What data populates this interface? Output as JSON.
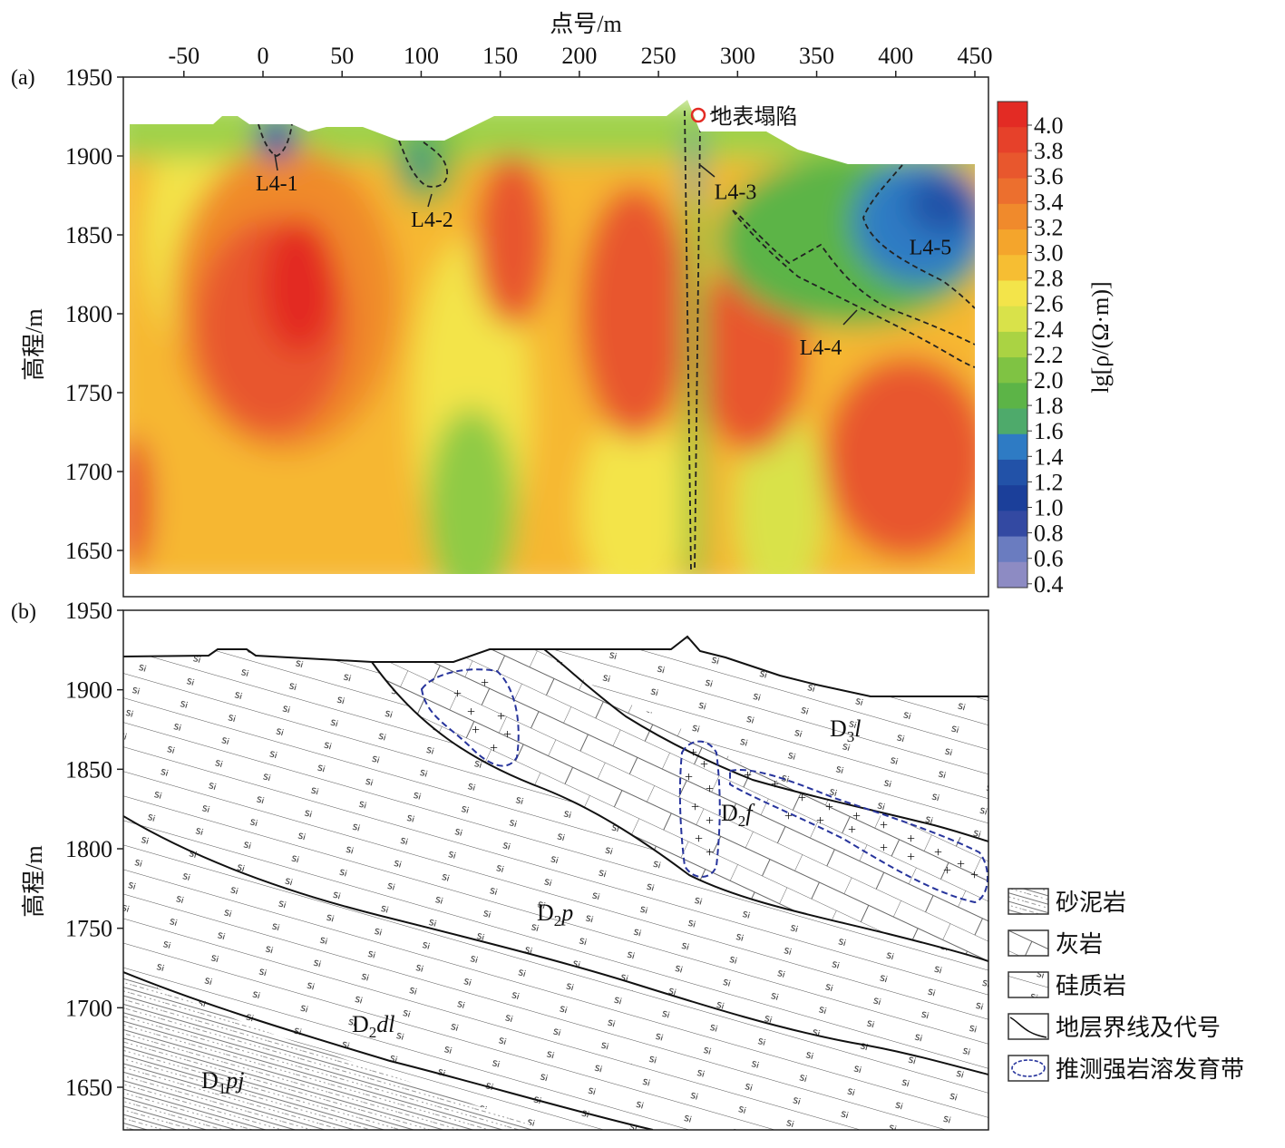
{
  "chart_data": [
    {
      "type": "heatmap",
      "panel_label": "(a)",
      "xlabel": "点号/m",
      "ylabel": "高程/m",
      "xticks": [
        -50,
        0,
        50,
        100,
        150,
        200,
        250,
        300,
        350,
        400,
        450
      ],
      "yticks": [
        1950,
        1900,
        1850,
        1800,
        1750,
        1700,
        1650
      ],
      "xlim": [
        -85,
        455
      ],
      "ylim": [
        1630,
        1950
      ],
      "colorbar": {
        "label": "lg[ρ/(Ω·m)]",
        "ticks": [
          "4.0",
          "3.8",
          "3.6",
          "3.4",
          "3.2",
          "3.0",
          "2.8",
          "2.6",
          "2.4",
          "2.2",
          "2.0",
          "1.8",
          "1.6",
          "1.4",
          "1.2",
          "1.0",
          "0.8",
          "0.6",
          "0.4"
        ],
        "colors": [
          "#e32b24",
          "#e6412a",
          "#e8572d",
          "#ec6f2e",
          "#f08a2c",
          "#f4a52c",
          "#f6be33",
          "#f3e44a",
          "#d9e24a",
          "#aad343",
          "#7fc343",
          "#5cb447",
          "#4eaa6b",
          "#2e7bc4",
          "#2252a8",
          "#1b3f9a",
          "#3349a2",
          "#6a7cc0",
          "#8d8bc3"
        ]
      },
      "anomalies": [
        {
          "label": "L4-1",
          "x": 8,
          "y": 1907
        },
        {
          "label": "L4-2",
          "x": 105,
          "y": 1885
        },
        {
          "label": "L4-3",
          "x": 275,
          "y": 1890
        },
        {
          "label": "L4-4",
          "x": 365,
          "y": 1800
        },
        {
          "label": "L4-5",
          "x": 420,
          "y": 1855
        }
      ],
      "annotation": {
        "label": "地表塌陷",
        "x": 276,
        "y": 1925
      }
    },
    {
      "type": "geologic_section",
      "panel_label": "(b)",
      "ylabel": "高程/m",
      "yticks": [
        1950,
        1900,
        1850,
        1800,
        1750,
        1700,
        1650
      ],
      "ylim": [
        1630,
        1950
      ],
      "strata": [
        {
          "code": "D",
          "sub": "3",
          "suffix": "l"
        },
        {
          "code": "D",
          "sub": "2",
          "suffix": "f"
        },
        {
          "code": "D",
          "sub": "2",
          "suffix": "p"
        },
        {
          "code": "D",
          "sub": "2",
          "suffix": "dl"
        },
        {
          "code": "D",
          "sub": "1",
          "suffix": "pj"
        }
      ],
      "legend": [
        "砂泥岩",
        "灰岩",
        "硅质岩",
        "地层界线及代号",
        "推测强岩溶发育带"
      ]
    }
  ]
}
